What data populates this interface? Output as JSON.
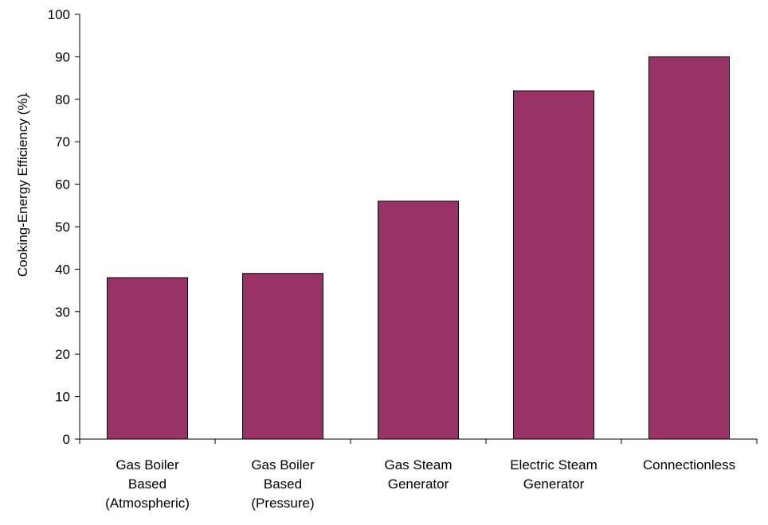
{
  "chart_data": {
    "type": "bar",
    "title": "",
    "xlabel": "",
    "ylabel": "Cooking-Energy Efficiency (%)",
    "ylabel_suffix": ".",
    "ylim": [
      0,
      100
    ],
    "yticks": [
      0,
      10,
      20,
      30,
      40,
      50,
      60,
      70,
      80,
      90,
      100
    ],
    "grid": false,
    "legend": "none",
    "bar_color": "#993366",
    "categories": [
      [
        "Gas Boiler",
        "Based",
        "(Atmospheric)"
      ],
      [
        "Gas Boiler",
        "Based",
        "(Pressure)"
      ],
      [
        "Gas Steam",
        "Generator"
      ],
      [
        "Electric Steam",
        "Generator"
      ],
      [
        "Connectionless"
      ]
    ],
    "values": [
      38,
      39,
      56,
      82,
      90
    ]
  }
}
